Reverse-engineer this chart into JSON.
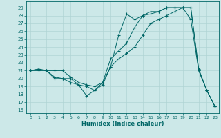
{
  "xlabel": "Humidex (Indice chaleur)",
  "background_color": "#cce8e8",
  "grid_color": "#b0d4d4",
  "line_color": "#006666",
  "xlim": [
    -0.5,
    23.5
  ],
  "ylim": [
    15.6,
    29.8
  ],
  "xticks": [
    0,
    1,
    2,
    3,
    4,
    5,
    6,
    7,
    8,
    9,
    10,
    11,
    12,
    13,
    14,
    15,
    16,
    17,
    18,
    19,
    20,
    21,
    22,
    23
  ],
  "yticks": [
    16,
    17,
    18,
    19,
    20,
    21,
    22,
    23,
    24,
    25,
    26,
    27,
    28,
    29
  ],
  "s1_x": [
    0,
    1,
    2,
    3,
    4,
    5,
    6,
    7,
    8,
    9,
    10,
    11,
    12,
    13,
    14,
    15,
    16,
    17,
    18,
    19,
    20,
    21,
    22,
    23
  ],
  "s1_y": [
    21.0,
    21.2,
    21.0,
    20.0,
    20.0,
    20.0,
    19.2,
    17.8,
    18.5,
    19.2,
    21.5,
    25.5,
    28.2,
    27.5,
    28.0,
    28.2,
    28.5,
    29.0,
    29.0,
    29.0,
    29.0,
    21.2,
    18.5,
    16.5
  ],
  "s2_x": [
    0,
    1,
    2,
    3,
    4,
    5,
    6,
    7,
    8,
    9,
    10,
    11,
    12,
    13,
    14,
    15,
    16,
    17,
    18,
    19,
    20,
    21,
    22,
    23
  ],
  "s2_y": [
    21.0,
    21.2,
    21.0,
    20.2,
    20.0,
    19.5,
    19.2,
    19.0,
    18.5,
    19.5,
    22.5,
    23.5,
    24.5,
    26.5,
    28.0,
    28.5,
    28.5,
    29.0,
    29.0,
    29.0,
    27.5,
    21.0,
    18.5,
    16.5
  ],
  "s3_x": [
    0,
    1,
    2,
    3,
    4,
    5,
    6,
    7,
    8,
    9,
    10,
    11,
    12,
    13,
    14,
    15,
    16,
    17,
    18,
    19,
    20,
    21,
    22,
    23
  ],
  "s3_y": [
    21.0,
    21.0,
    21.0,
    21.0,
    21.0,
    20.2,
    19.5,
    19.2,
    19.0,
    19.5,
    21.5,
    22.5,
    23.2,
    24.0,
    25.5,
    27.0,
    27.5,
    28.0,
    28.5,
    29.0,
    29.0,
    21.0,
    18.5,
    16.5
  ]
}
